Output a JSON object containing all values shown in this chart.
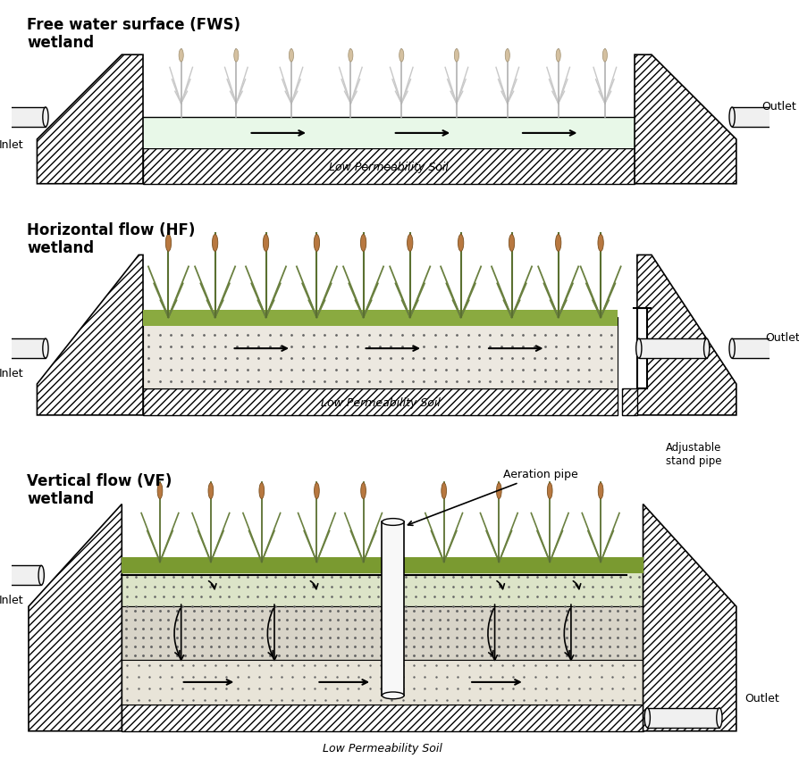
{
  "title1_line1": "Free water surface (FWS)",
  "title1_line2": "wetland",
  "title2_line1": "Horizontal flow (HF)",
  "title2_line2": "wetland",
  "title3_line1": "Vertical flow (VF)",
  "title3_line2": "wetland",
  "label_inlet": "Inlet",
  "label_outlet": "Outlet",
  "label_low_perm": "Low Permeability Soil",
  "label_adj_stand": "Adjustable\nstand pipe",
  "label_aeration": "Aeration pipe",
  "bg_color": "#ffffff"
}
